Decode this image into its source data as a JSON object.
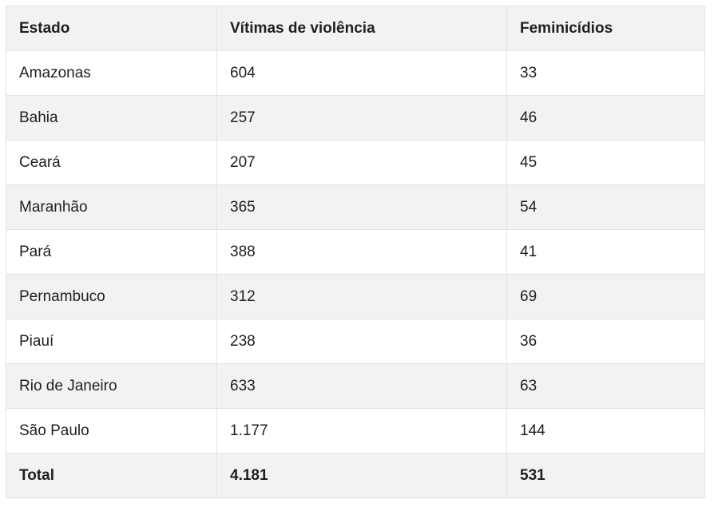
{
  "table": {
    "headers": [
      "Estado",
      "Vítimas de violência",
      "Feminicídios"
    ],
    "rows": [
      [
        "Amazonas",
        "604",
        "33"
      ],
      [
        "Bahia",
        "257",
        "46"
      ],
      [
        "Ceará",
        "207",
        "45"
      ],
      [
        "Maranhão",
        "365",
        "54"
      ],
      [
        "Pará",
        "388",
        "41"
      ],
      [
        "Pernambuco",
        "312",
        "69"
      ],
      [
        "Piauí",
        "238",
        "36"
      ],
      [
        "Rio de Janeiro",
        "633",
        "63"
      ],
      [
        "São Paulo",
        "1.177",
        "144"
      ]
    ],
    "total": [
      "Total",
      "4.181",
      "531"
    ]
  }
}
